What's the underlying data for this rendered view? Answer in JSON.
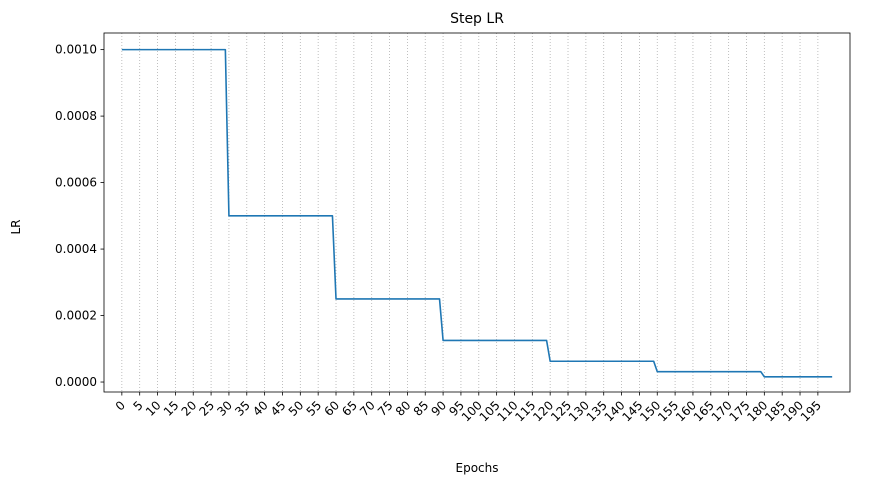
{
  "chart_data": {
    "type": "line",
    "title": "Step LR",
    "xlabel": "Epochs",
    "ylabel": "LR",
    "xlim": [
      -5,
      204
    ],
    "ylim": [
      -3e-05,
      0.00105
    ],
    "xticks": [
      0,
      5,
      10,
      15,
      20,
      25,
      30,
      35,
      40,
      45,
      50,
      55,
      60,
      65,
      70,
      75,
      80,
      85,
      90,
      95,
      100,
      105,
      110,
      115,
      120,
      125,
      130,
      135,
      140,
      145,
      150,
      155,
      160,
      165,
      170,
      175,
      180,
      185,
      190,
      195
    ],
    "xtick_labels": [
      "0",
      "5",
      "10",
      "15",
      "20",
      "25",
      "30",
      "35",
      "40",
      "45",
      "50",
      "55",
      "60",
      "65",
      "70",
      "75",
      "80",
      "85",
      "90",
      "95",
      "100",
      "105",
      "110",
      "115",
      "120",
      "125",
      "130",
      "135",
      "140",
      "145",
      "150",
      "155",
      "160",
      "165",
      "170",
      "175",
      "180",
      "185",
      "190",
      "195"
    ],
    "yticks": [
      0,
      0.0002,
      0.0004,
      0.0006,
      0.0008,
      0.001
    ],
    "ytick_labels": [
      "0.0000",
      "0.0002",
      "0.0004",
      "0.0006",
      "0.0008",
      "0.0010"
    ],
    "grid": "vertical dotted at every x tick",
    "series": [
      {
        "color": "#1f77b4",
        "x": [
          0,
          29,
          30,
          59,
          60,
          89,
          90,
          119,
          120,
          149,
          150,
          179,
          180,
          199
        ],
        "values": [
          0.001,
          0.001,
          0.0005,
          0.0005,
          0.00025,
          0.00025,
          0.000125,
          0.000125,
          6.25e-05,
          6.25e-05,
          3.125e-05,
          3.125e-05,
          1.5625e-05,
          1.5625e-05
        ]
      }
    ]
  }
}
